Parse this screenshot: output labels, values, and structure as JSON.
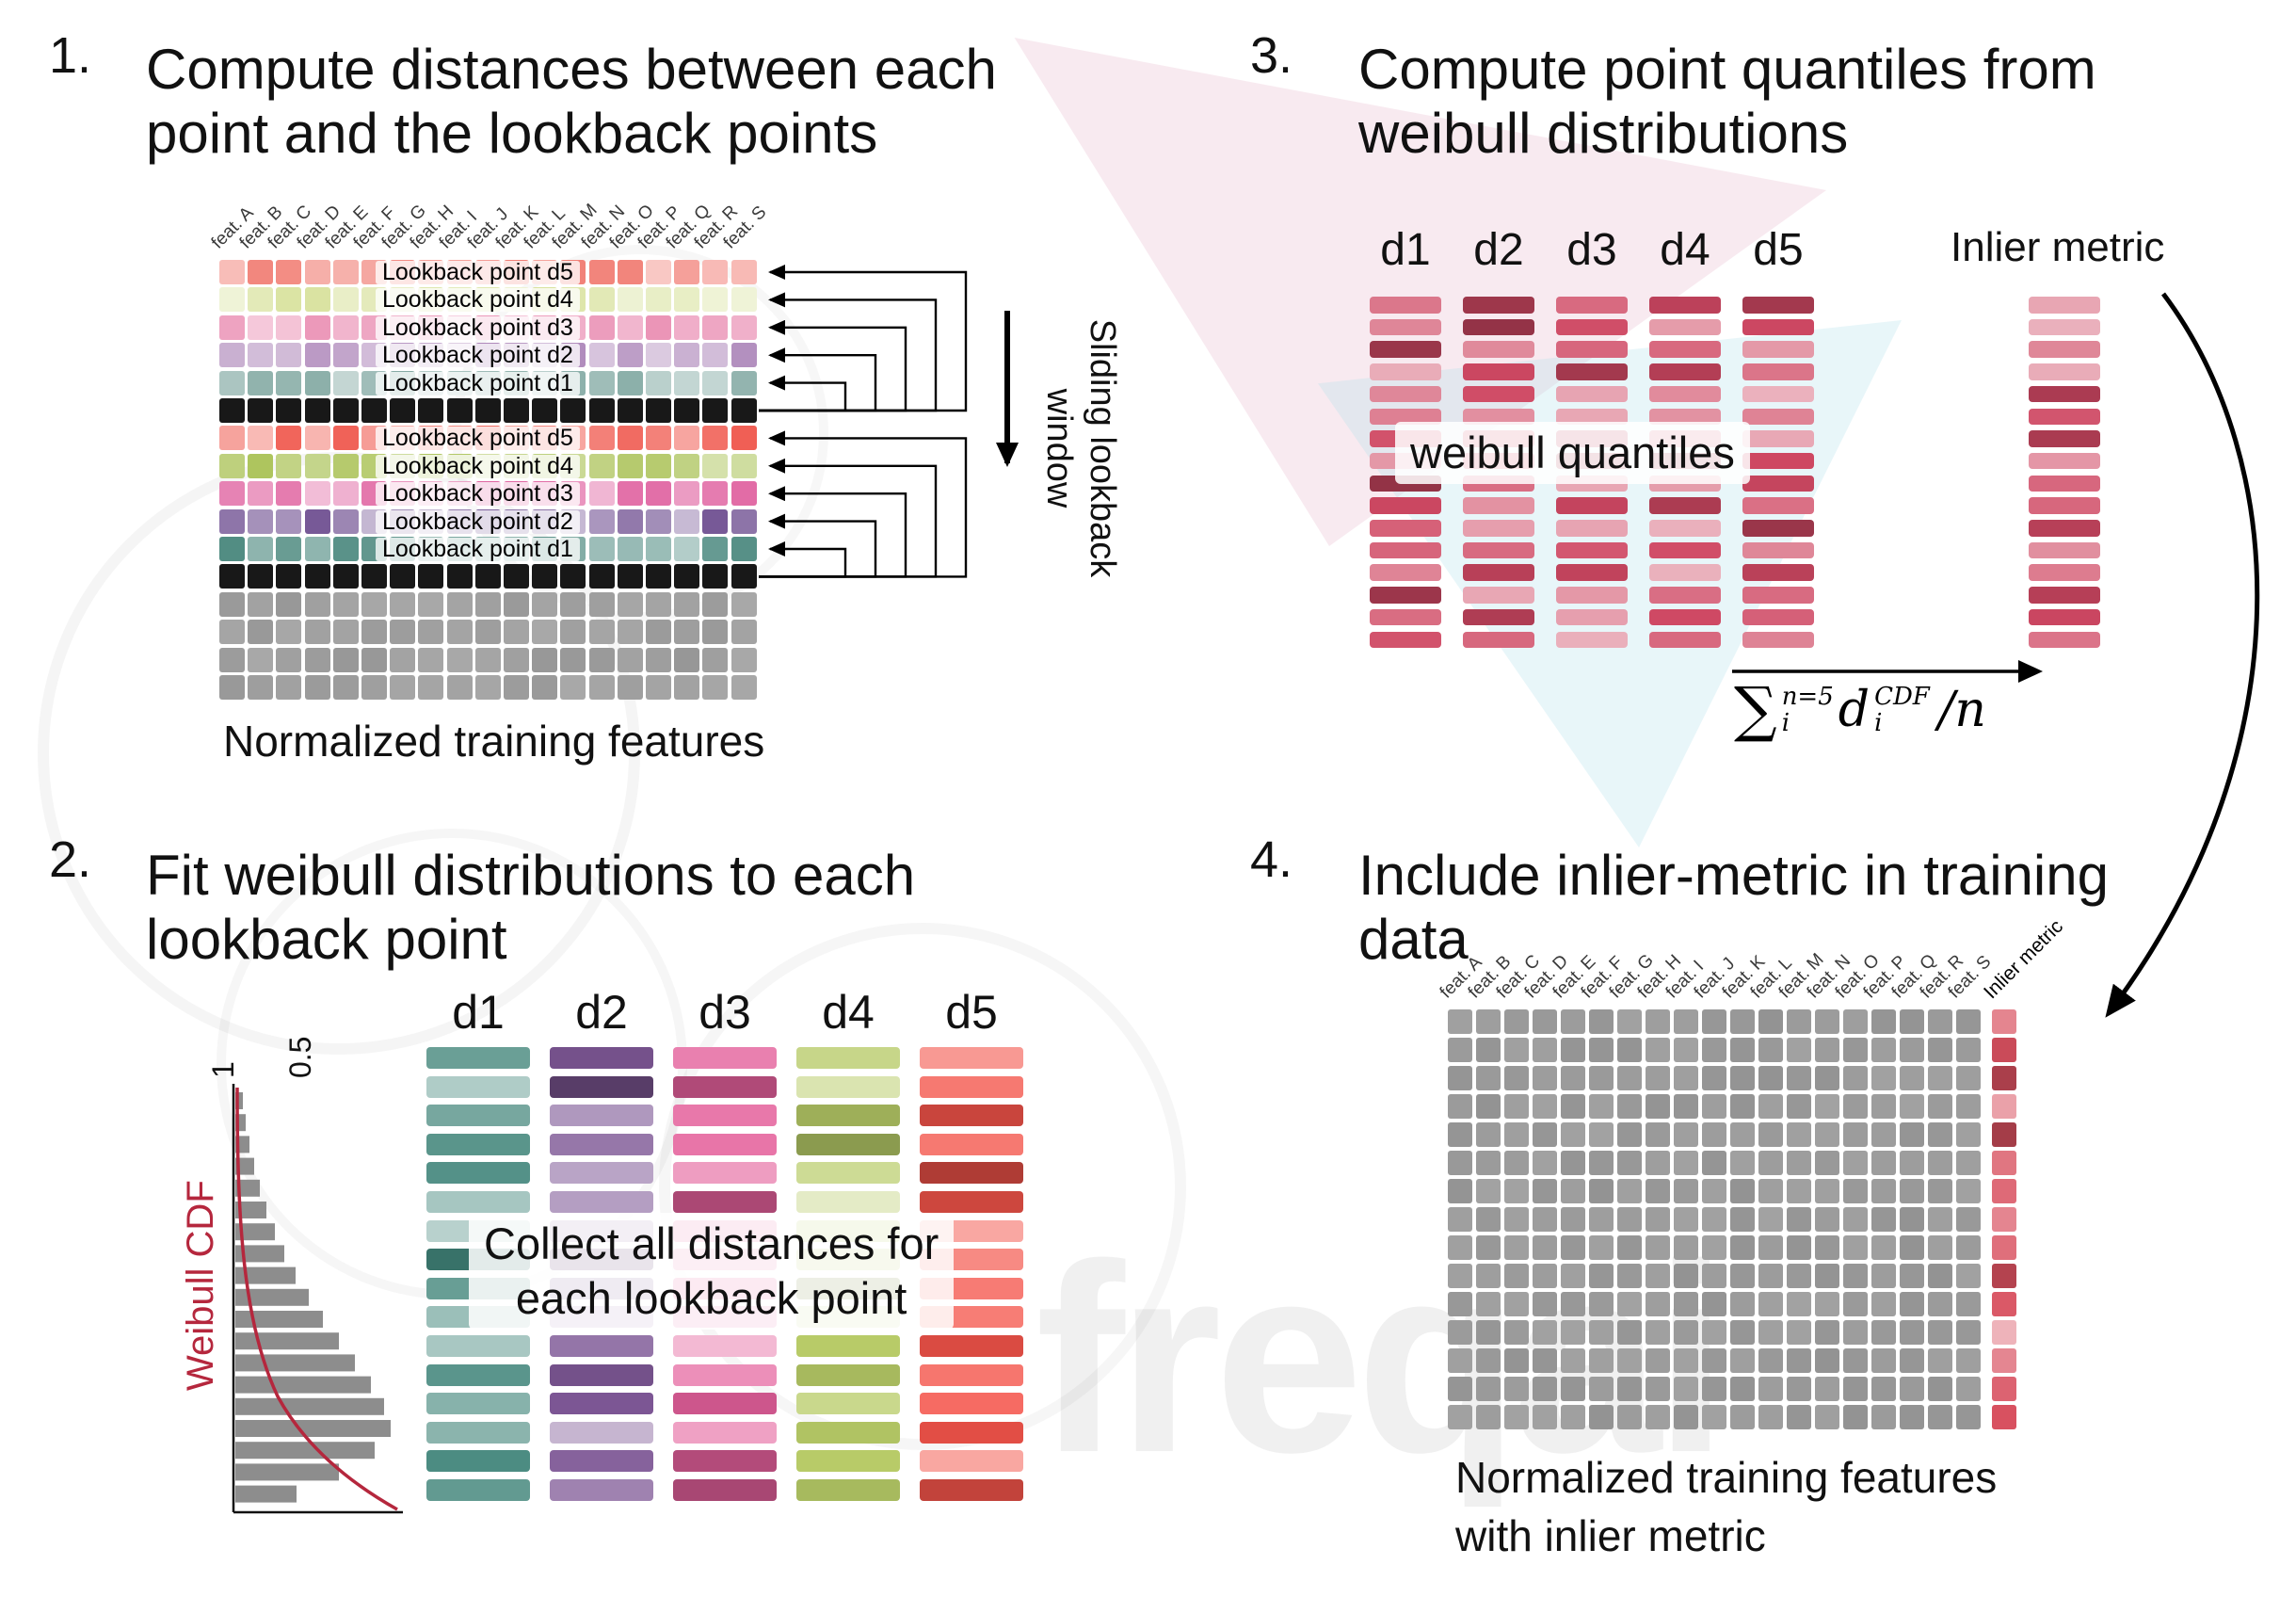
{
  "watermark": {
    "text": "freqai"
  },
  "panel1": {
    "number": "1.",
    "title_lines": [
      "Compute distances between each",
      "point and the lookback points"
    ],
    "features": [
      "feat. A",
      "feat. B",
      "feat. C",
      "feat. D",
      "feat. E",
      "feat. F",
      "feat. G",
      "feat. H",
      "feat. I",
      "feat. J",
      "feat. K",
      "feat. L",
      "feat. M",
      "feat. N",
      "feat. O",
      "feat. P",
      "feat. Q",
      "feat. R",
      "feat. S"
    ],
    "rows": [
      {
        "label": "Lookback point d5",
        "color": "#f0756b",
        "type": "feat"
      },
      {
        "label": "Lookback point d4",
        "color": "#d6e098",
        "type": "feat"
      },
      {
        "label": "Lookback point d3",
        "color": "#e98ab0",
        "type": "feat"
      },
      {
        "label": "Lookback point d2",
        "color": "#a87fb5",
        "type": "feat"
      },
      {
        "label": "Lookback point d1",
        "color": "#6d9a93",
        "type": "feat"
      },
      {
        "label": null,
        "color": "#181818",
        "type": "black"
      },
      {
        "label": "Lookback point d5",
        "color": "#ef5348",
        "type": "feat"
      },
      {
        "label": "Lookback point d4",
        "color": "#a6bf4e",
        "type": "feat"
      },
      {
        "label": "Lookback point d3",
        "color": "#dd5598",
        "type": "feat"
      },
      {
        "label": "Lookback point d2",
        "color": "#6b4a8e",
        "type": "feat"
      },
      {
        "label": "Lookback point d1",
        "color": "#3d7f74",
        "type": "feat"
      },
      {
        "label": null,
        "color": "#181818",
        "type": "black"
      },
      {
        "label": null,
        "color": "#a2a2a2",
        "type": "gray"
      },
      {
        "label": null,
        "color": "#a2a2a2",
        "type": "gray"
      },
      {
        "label": null,
        "color": "#a2a2a2",
        "type": "gray"
      },
      {
        "label": null,
        "color": "#a2a2a2",
        "type": "gray"
      }
    ],
    "sliding_label": "Sliding lookback window",
    "caption": "Normalized training features"
  },
  "panel2": {
    "number": "2.",
    "title_lines": [
      "Fit weibull distributions to each",
      "lookback point"
    ],
    "weibull": {
      "axis_label": "Weibull CDF",
      "ticks": [
        "1",
        "0.5"
      ],
      "bars": [
        8,
        11,
        15,
        20,
        26,
        33,
        42,
        52,
        64,
        78,
        93,
        110,
        127,
        144,
        158,
        165,
        148,
        110,
        65
      ],
      "bar_color": "#8d8d8d",
      "curve_color": "#b5273d"
    },
    "columns": [
      {
        "label": "d1",
        "color": "#41857a"
      },
      {
        "label": "d2",
        "color": "#7d5795"
      },
      {
        "label": "d3",
        "color": "#e4609b"
      },
      {
        "label": "d4",
        "color": "#b7cb67"
      },
      {
        "label": "d5",
        "color": "#f4544a"
      }
    ],
    "overlay_lines": [
      "Collect all distances for",
      "each lookback point"
    ]
  },
  "panel3": {
    "number": "3.",
    "title_lines": [
      "Compute point quantiles from",
      "weibull distributions"
    ],
    "columns": [
      "d1",
      "d2",
      "d3",
      "d4",
      "d5"
    ],
    "bar_color": "#cf4863",
    "overlay": "weibull quantiles",
    "inlier_label": "Inlier metric",
    "formula": {
      "sum": "∑",
      "sum_sup": "n=5",
      "sum_sub": "i",
      "var": "d",
      "var_sup": "CDF",
      "var_sub": "i",
      "tail": "/n"
    }
  },
  "panel4": {
    "number": "4.",
    "title_lines": [
      "Include inlier-metric in training",
      "data"
    ],
    "features": [
      "feat. A",
      "feat. B",
      "feat. C",
      "feat. D",
      "feat. E",
      "feat. F",
      "feat. G",
      "feat. H",
      "feat. I",
      "feat. J",
      "feat. K",
      "feat. L",
      "feat. M",
      "feat. N",
      "feat. O",
      "feat. P",
      "feat. Q",
      "feat. R",
      "feat. S"
    ],
    "inlier_header": "Inlier metric",
    "cell_color": "#9c9c9c",
    "inlier_color": "#d8505f",
    "caption_lines": [
      "Normalized training features",
      "with inlier metric"
    ]
  }
}
